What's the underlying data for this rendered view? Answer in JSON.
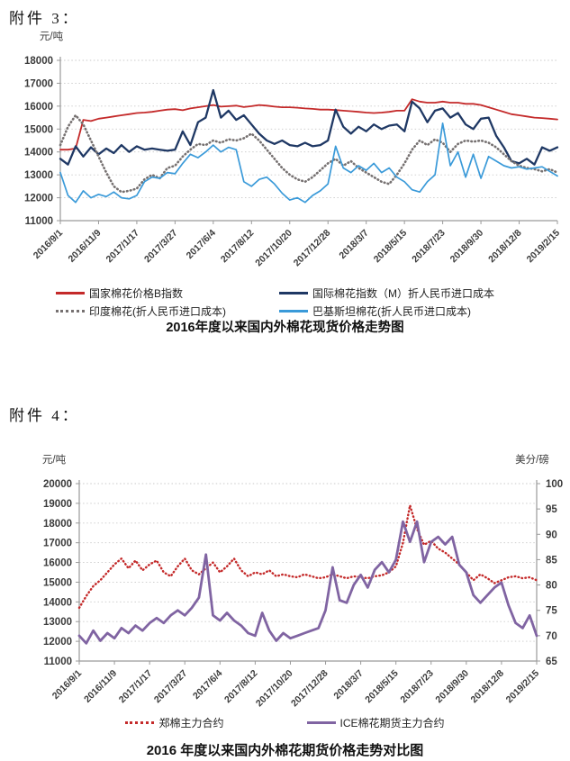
{
  "page": {
    "attachment3_label": "附件 3：",
    "attachment4_label": "附件 4："
  },
  "chart_data": [
    {
      "type": "line",
      "title": "2016年度以来国内外棉花现货价格走势图",
      "y_unit_left": "元/吨",
      "ylim_left": [
        11000,
        18000
      ],
      "y_ticks_left": [
        18000,
        17000,
        16000,
        15000,
        14000,
        13000,
        12000,
        11000
      ],
      "x_ticks": [
        "2016/9/1",
        "2016/11/9",
        "2017/1/17",
        "2017/3/27",
        "2017/6/4",
        "2017/8/12",
        "2017/10/20",
        "2017/12/28",
        "2018/3/7",
        "2018/5/15",
        "2018/7/23",
        "2018/9/30",
        "2018/12/8",
        "2019/2/15"
      ],
      "grid": true,
      "legend_position": "bottom",
      "series": [
        {
          "name": "国家棉花价格B指数",
          "color": "#C42A2A",
          "style": "solid",
          "axis": "left",
          "width": 1.8,
          "values": [
            14100,
            14100,
            14150,
            15400,
            15350,
            15450,
            15500,
            15550,
            15600,
            15650,
            15700,
            15720,
            15750,
            15800,
            15850,
            15870,
            15820,
            15900,
            15950,
            16000,
            16050,
            15980,
            16000,
            16020,
            15960,
            16000,
            16050,
            16020,
            15980,
            15950,
            15950,
            15930,
            15900,
            15880,
            15850,
            15850,
            15830,
            15800,
            15780,
            15750,
            15720,
            15700,
            15720,
            15750,
            15800,
            15800,
            16300,
            16200,
            16150,
            16150,
            16200,
            16150,
            16150,
            16100,
            16100,
            16050,
            15950,
            15850,
            15750,
            15650,
            15600,
            15550,
            15500,
            15480,
            15450,
            15420
          ]
        },
        {
          "name": "国际棉花指数（M）折人民币进口成本",
          "color": "#1F3864",
          "style": "solid",
          "axis": "left",
          "width": 2.3,
          "values": [
            13700,
            13450,
            14250,
            13800,
            14200,
            13900,
            14150,
            13950,
            14300,
            14000,
            14250,
            14100,
            14150,
            14100,
            14050,
            14100,
            14900,
            14300,
            15300,
            15500,
            16700,
            15500,
            15800,
            15400,
            15600,
            15200,
            14800,
            14500,
            14350,
            14500,
            14300,
            14250,
            14400,
            14250,
            14300,
            14500,
            15850,
            15100,
            14800,
            15100,
            14900,
            15200,
            15000,
            15150,
            15200,
            14900,
            16200,
            15900,
            15300,
            15800,
            15900,
            15500,
            15700,
            15200,
            15000,
            15450,
            15500,
            14700,
            14200,
            13600,
            13500,
            13700,
            13450,
            14200,
            14050,
            14200
          ]
        },
        {
          "name": "印度棉花(折人民币进口成本)",
          "color": "#767171",
          "style": "dotted",
          "axis": "left",
          "width": 2.6,
          "values": [
            14300,
            15100,
            15600,
            15200,
            14500,
            13800,
            13100,
            12500,
            12250,
            12300,
            12400,
            12800,
            13000,
            12850,
            13300,
            13400,
            13800,
            14100,
            14350,
            14300,
            14500,
            14400,
            14550,
            14500,
            14600,
            14800,
            14500,
            14100,
            13700,
            13300,
            13000,
            12800,
            12700,
            12900,
            13200,
            13500,
            13700,
            13400,
            13600,
            13300,
            13100,
            12900,
            12700,
            12600,
            13000,
            13500,
            14100,
            14500,
            14300,
            14550,
            14400,
            14000,
            14350,
            14500,
            14450,
            14500,
            14400,
            14200,
            13900,
            13600,
            13400,
            13300,
            13250,
            13150,
            13250,
            13100
          ]
        },
        {
          "name": "巴基斯坦棉花(折人民币进口成本)",
          "color": "#3A9AD9",
          "style": "solid",
          "axis": "left",
          "width": 1.7,
          "values": [
            13100,
            12100,
            11800,
            12300,
            12000,
            12150,
            12050,
            12250,
            12000,
            11950,
            12100,
            12700,
            12900,
            12850,
            13100,
            13050,
            13500,
            13900,
            13750,
            14000,
            14300,
            14000,
            14200,
            14100,
            12700,
            12500,
            12800,
            12900,
            12600,
            12200,
            11900,
            12000,
            11800,
            12100,
            12300,
            12600,
            14250,
            13300,
            13100,
            13400,
            13200,
            13500,
            13100,
            13300,
            12900,
            12700,
            12350,
            12250,
            12700,
            13000,
            15250,
            13400,
            14000,
            12900,
            13900,
            12850,
            13800,
            13600,
            13400,
            13300,
            13350,
            13250,
            13300,
            13350,
            13150,
            12950
          ]
        }
      ]
    },
    {
      "type": "line",
      "title": "2016 年度以来国内外棉花期货价格走势对比图",
      "y_unit_left": "元/吨",
      "y_unit_right": "美分/磅",
      "ylim_left": [
        11000,
        20000
      ],
      "ylim_right": [
        65,
        100
      ],
      "y_ticks_left": [
        20000,
        19000,
        18000,
        17000,
        16000,
        15000,
        14000,
        13000,
        12000,
        11000
      ],
      "y_ticks_right": [
        100,
        95,
        90,
        85,
        80,
        75,
        70,
        65
      ],
      "x_ticks": [
        "2016/9/1",
        "2016/11/9",
        "2017/1/17",
        "2017/3/27",
        "2017/6/4",
        "2017/8/12",
        "2017/10/20",
        "2017/12/28",
        "2018/3/7",
        "2018/5/15",
        "2018/7/23",
        "2018/9/30",
        "2018/12/8",
        "2019/2/15"
      ],
      "grid": true,
      "legend_position": "bottom",
      "series": [
        {
          "name": "郑棉主力合约",
          "color": "#C42A2A",
          "style": "dotted",
          "axis": "left",
          "width": 2.4,
          "values": [
            13700,
            14300,
            14800,
            15100,
            15500,
            15900,
            16200,
            15700,
            16100,
            15600,
            15900,
            16100,
            15500,
            15300,
            15800,
            16200,
            15600,
            15400,
            15700,
            16000,
            15500,
            15800,
            16200,
            15600,
            15300,
            15500,
            15400,
            15600,
            15300,
            15400,
            15300,
            15250,
            15400,
            15300,
            15200,
            15250,
            15400,
            15300,
            15200,
            15300,
            15250,
            15200,
            15300,
            15350,
            15500,
            15800,
            17000,
            18900,
            17700,
            16900,
            17100,
            16700,
            16500,
            16200,
            15900,
            15500,
            15100,
            15400,
            15200,
            14950,
            15100,
            15250,
            15300,
            15200,
            15250,
            15100
          ]
        },
        {
          "name": "ICE棉花期货主力合约",
          "color": "#8064A2",
          "style": "solid",
          "axis": "right",
          "width": 2.8,
          "values": [
            70,
            68.5,
            71,
            69,
            70.5,
            69.5,
            71.5,
            70.5,
            72,
            71,
            72.5,
            73.5,
            72.5,
            74,
            75,
            74,
            75.5,
            77.5,
            86,
            74,
            73,
            74.5,
            73,
            72,
            70.5,
            70,
            74.5,
            71,
            69,
            70.5,
            69.5,
            70,
            70.5,
            71,
            71.5,
            75,
            83.5,
            77,
            76.5,
            80,
            82,
            79.5,
            83,
            84.5,
            82.5,
            85,
            92.5,
            88.5,
            92.5,
            84.5,
            88.5,
            89.5,
            88,
            89.5,
            84,
            82.5,
            78,
            76.5,
            78,
            79.5,
            80.5,
            76,
            72.5,
            71.5,
            74,
            70
          ]
        }
      ]
    }
  ]
}
